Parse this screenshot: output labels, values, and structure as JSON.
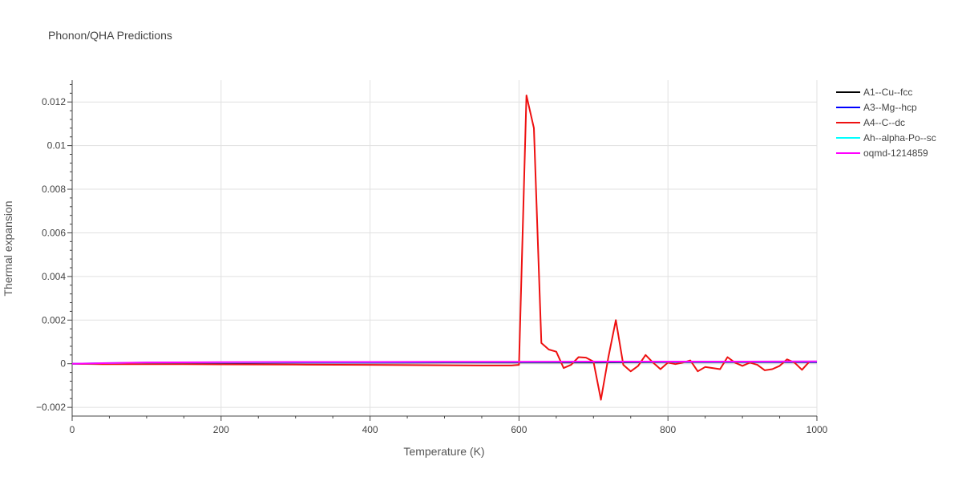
{
  "chart_data": {
    "type": "line",
    "title": "Phonon/QHA Predictions",
    "xlabel": "Temperature (K)",
    "ylabel": "Thermal expansion",
    "xlim": [
      0,
      1000
    ],
    "ylim": [
      -0.0024,
      0.013
    ],
    "x_ticks": [
      0,
      200,
      400,
      600,
      800,
      1000
    ],
    "x_tick_labels": [
      "0",
      "200",
      "400",
      "600",
      "800",
      "1000"
    ],
    "y_ticks": [
      -0.002,
      0,
      0.002,
      0.004,
      0.006,
      0.008,
      0.01,
      0.012
    ],
    "y_tick_labels": [
      "−0.002",
      "0",
      "0.002",
      "0.004",
      "0.006",
      "0.008",
      "0.01",
      "0.012"
    ],
    "grid": true,
    "legend_position": "right",
    "series": [
      {
        "name": "A1--Cu--fcc",
        "color": "#000000",
        "x": [
          0,
          50,
          100,
          200,
          300,
          400,
          500,
          600,
          700,
          800,
          900,
          1000
        ],
        "y": [
          0,
          1e-05,
          3e-05,
          4e-05,
          5e-05,
          5e-05,
          6e-05,
          6e-05,
          6e-05,
          7e-05,
          7e-05,
          7e-05
        ]
      },
      {
        "name": "A3--Mg--hcp",
        "color": "#0000ff",
        "x": [
          0,
          50,
          100,
          200,
          300,
          400,
          500,
          600,
          700,
          800,
          900,
          1000
        ],
        "y": [
          0,
          2e-05,
          4e-05,
          5e-05,
          6e-05,
          6e-05,
          7e-05,
          7e-05,
          8e-05,
          8e-05,
          8e-05,
          8e-05
        ]
      },
      {
        "name": "A4--C--dc",
        "color": "#ee1111",
        "x": [
          0,
          20,
          40,
          60,
          80,
          100,
          150,
          200,
          300,
          400,
          500,
          550,
          590,
          600,
          610,
          620,
          630,
          640,
          650,
          660,
          670,
          680,
          690,
          700,
          710,
          720,
          730,
          740,
          750,
          760,
          770,
          780,
          790,
          800,
          810,
          820,
          830,
          840,
          850,
          860,
          870,
          880,
          890,
          900,
          910,
          920,
          930,
          940,
          950,
          960,
          970,
          980,
          990
        ],
        "y": [
          0,
          -1e-05,
          -2e-05,
          -2e-05,
          -2e-05,
          -2e-05,
          -2e-05,
          -3e-05,
          -4e-05,
          -5e-05,
          -7e-05,
          -8e-05,
          -8e-05,
          -5e-05,
          0.0123,
          0.0108,
          0.00095,
          0.00065,
          0.00055,
          -0.0002,
          -5e-05,
          0.0003,
          0.00028,
          0.0001,
          -0.00165,
          0.0003,
          0.002,
          -5e-05,
          -0.00035,
          -0.0001,
          0.0004,
          5e-05,
          -0.00025,
          5e-05,
          -2e-05,
          5e-05,
          0.00015,
          -0.00035,
          -0.00015,
          -0.0002,
          -0.00025,
          0.0003,
          5e-05,
          -0.0001,
          5e-05,
          -5e-05,
          -0.0003,
          -0.00025,
          -0.0001,
          0.0002,
          5e-05,
          -0.00028,
          0.0001
        ]
      },
      {
        "name": "Ah--alpha-Po--sc",
        "color": "#00ffff",
        "x": [
          0,
          50,
          100,
          200,
          300,
          400,
          500,
          600,
          700,
          800,
          900,
          1000
        ],
        "y": [
          0,
          3e-05,
          5e-05,
          6e-05,
          7e-05,
          7e-05,
          8e-05,
          8e-05,
          9e-05,
          9e-05,
          9e-05,
          0.0001
        ]
      },
      {
        "name": "oqmd-1214859",
        "color": "#ff00ff",
        "x": [
          0,
          50,
          100,
          200,
          300,
          400,
          500,
          600,
          700,
          800,
          900,
          1000
        ],
        "y": [
          0,
          3e-05,
          6e-05,
          7e-05,
          8e-05,
          8e-05,
          9e-05,
          9e-05,
          0.0001,
          0.0001,
          0.0001,
          0.00011
        ]
      }
    ]
  }
}
